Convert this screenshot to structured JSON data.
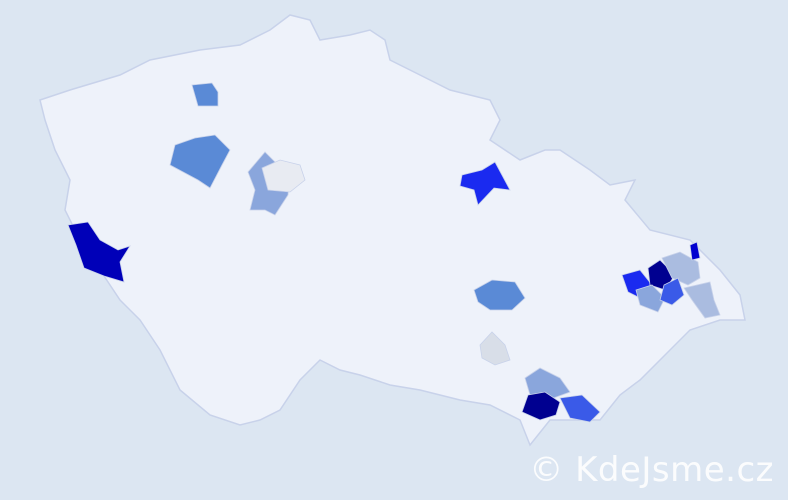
{
  "map": {
    "base_color": "#eef2fa",
    "border_color": "#c8d2ea",
    "regions": [
      {
        "id": "north-1",
        "color": "#5a8ad6"
      },
      {
        "id": "central-west-1",
        "color": "#5a8ad6"
      },
      {
        "id": "central-1",
        "color": "#8aa6dc"
      },
      {
        "id": "central-2",
        "color": "#e8ebf2"
      },
      {
        "id": "west-1",
        "color": "#0000b8"
      },
      {
        "id": "northeast-1",
        "color": "#1a2af0"
      },
      {
        "id": "center-east-1",
        "color": "#5a8ad6"
      },
      {
        "id": "south-1",
        "color": "#d8dee8"
      },
      {
        "id": "south-2",
        "color": "#8aa6dc"
      },
      {
        "id": "south-3",
        "color": "#000090"
      },
      {
        "id": "south-4",
        "color": "#3a5ae8"
      },
      {
        "id": "east-1",
        "color": "#1a2af0"
      },
      {
        "id": "east-2",
        "color": "#000090"
      },
      {
        "id": "east-3",
        "color": "#aabce0"
      },
      {
        "id": "east-4",
        "color": "#8aa6dc"
      },
      {
        "id": "east-5",
        "color": "#3a5ae8"
      },
      {
        "id": "east-6",
        "color": "#0000d0"
      },
      {
        "id": "east-7",
        "color": "#aabce0"
      }
    ]
  },
  "watermark": "© KdeJsme.cz"
}
